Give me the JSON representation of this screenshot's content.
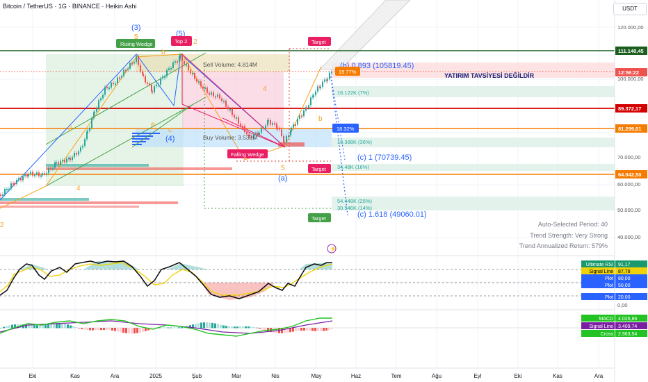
{
  "header": {
    "symbol_title": "Bitcoin / TetherUS · 1G · BINANCE · Heikin Ashi",
    "currency_button": "USDT"
  },
  "price_axis": {
    "ticks": [
      "120.000,00",
      "100.000,00",
      "70.000,00",
      "60.000,00",
      "50.000,00",
      "40.000,00"
    ],
    "badges": [
      {
        "label": "111.140,45",
        "bg": "#1b5e20"
      },
      {
        "label": "12:56:22",
        "bg": "#ef5350"
      },
      {
        "label": "89.372,17",
        "bg": "#d50000"
      },
      {
        "label": "81.299,01",
        "bg": "#f57c00"
      },
      {
        "label": "64.042,50",
        "bg": "#f57c00"
      }
    ]
  },
  "time_axis": [
    "Eki",
    "Kas",
    "Ara",
    "2025",
    "Şub",
    "Mar",
    "Nis",
    "May",
    "Haz",
    "Tem",
    "Ağu",
    "Eyl",
    "Eki",
    "Kas",
    "Ara"
  ],
  "annotations": {
    "wave_3": "(3)",
    "wave_5_top": "5",
    "wave_5_paren": "(5)",
    "wave_2": "2",
    "wave_4": "(4)",
    "wave_a": "(a)",
    "rising_wedge": "Rising Wedge",
    "top2": "Top 2",
    "falling_wedge": "Falling Wedge",
    "target": "Target",
    "sell_volume": "Sell Volume: 4.814M",
    "buy_volume": "Buy Volume: 3.538M",
    "fib_b": "(b) 0.893 (105819.45)",
    "fib_c1": "(c) 1 (70739.45)",
    "fib_c1618": "(c) 1.618 (49060.01)",
    "badge_1977": "19.77%",
    "badge_1832": "18.32%",
    "vol_1612": "16.122K (7%)",
    "vol_1838": "18.388K (36%)",
    "vol_3448": "34.48K (16%)",
    "vol_5448": "54.448K (25%)",
    "vol_3054": "30.546K (14%)",
    "not_advice": "YATIRIM TAVSİYESİ DEĞİLDİR",
    "lbl_a": "a",
    "lbl_b": "b",
    "lbl_c": "c",
    "lbl_3": "3",
    "lbl_4": "4",
    "lbl_5": "5"
  },
  "trend_stats": {
    "period": "Auto-Selected Period: 40",
    "strength": "Trend Strength: Very Strong",
    "return": "Trend Annualized Return: 579%"
  },
  "rsi_panel": {
    "badges": [
      {
        "label": "Ultimate RSI",
        "value": "91,17",
        "bg": "#1a9a6c"
      },
      {
        "label": "Signal Line",
        "value": "87,78",
        "bg": "#f0d20a"
      },
      {
        "label": "Plot",
        "value": "80,00",
        "bg": "#2962ff"
      },
      {
        "label": "Plot",
        "value": "50,00",
        "bg": "#2962ff"
      },
      {
        "label": "Plot",
        "value": "20,00",
        "bg": "#2962ff"
      }
    ],
    "zero_tick": "0,00"
  },
  "macd_panel": {
    "badges": [
      {
        "label": "MACD",
        "value": "4.026,86",
        "bg": "#22c322"
      },
      {
        "label": "Signal Line",
        "value": "3.409,74",
        "bg": "#7b1fa2"
      },
      {
        "label": "Cross",
        "value": "2.963,54",
        "bg": "#22c322"
      }
    ]
  },
  "colors": {
    "up": "#26a69a",
    "down": "#ef5350",
    "accent_blue": "#2962ff",
    "orange": "#f7a21b",
    "green_line": "#1b5e20",
    "red_line": "#d50000"
  }
}
